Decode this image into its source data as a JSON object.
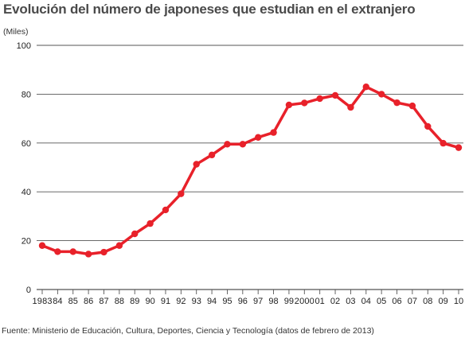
{
  "title": "Evolución del número de japoneses que estudian en el extranjero",
  "source": "Fuente: Ministerio de Educación, Cultura, Deportes, Ciencia y Tecnología (datos de febrero de 2013)",
  "colors": {
    "line": "#e8212a",
    "grid": "#555555",
    "text": "#222222"
  },
  "chart_data": {
    "type": "line",
    "title": "Evolución del número de japoneses que estudian en el extranjero",
    "ylabel": "(Miles)",
    "xlabel": "",
    "ylim": [
      0,
      100
    ],
    "yticks": [
      0,
      20,
      40,
      60,
      80,
      100
    ],
    "grid": true,
    "categories": [
      "1983",
      "84",
      "85",
      "86",
      "87",
      "88",
      "89",
      "90",
      "91",
      "92",
      "93",
      "94",
      "95",
      "96",
      "97",
      "98",
      "99",
      "2000",
      "01",
      "02",
      "03",
      "04",
      "05",
      "06",
      "07",
      "08",
      "09",
      "10"
    ],
    "values": [
      18,
      15.5,
      15.5,
      14.5,
      15.3,
      18,
      22.8,
      27,
      32.6,
      39.2,
      51.3,
      55.1,
      59.5,
      59.5,
      62.3,
      64.3,
      75.6,
      76.4,
      78.2,
      79.5,
      74.6,
      83,
      80,
      76.5,
      75.2,
      66.8,
      59.9,
      58.1
    ]
  }
}
